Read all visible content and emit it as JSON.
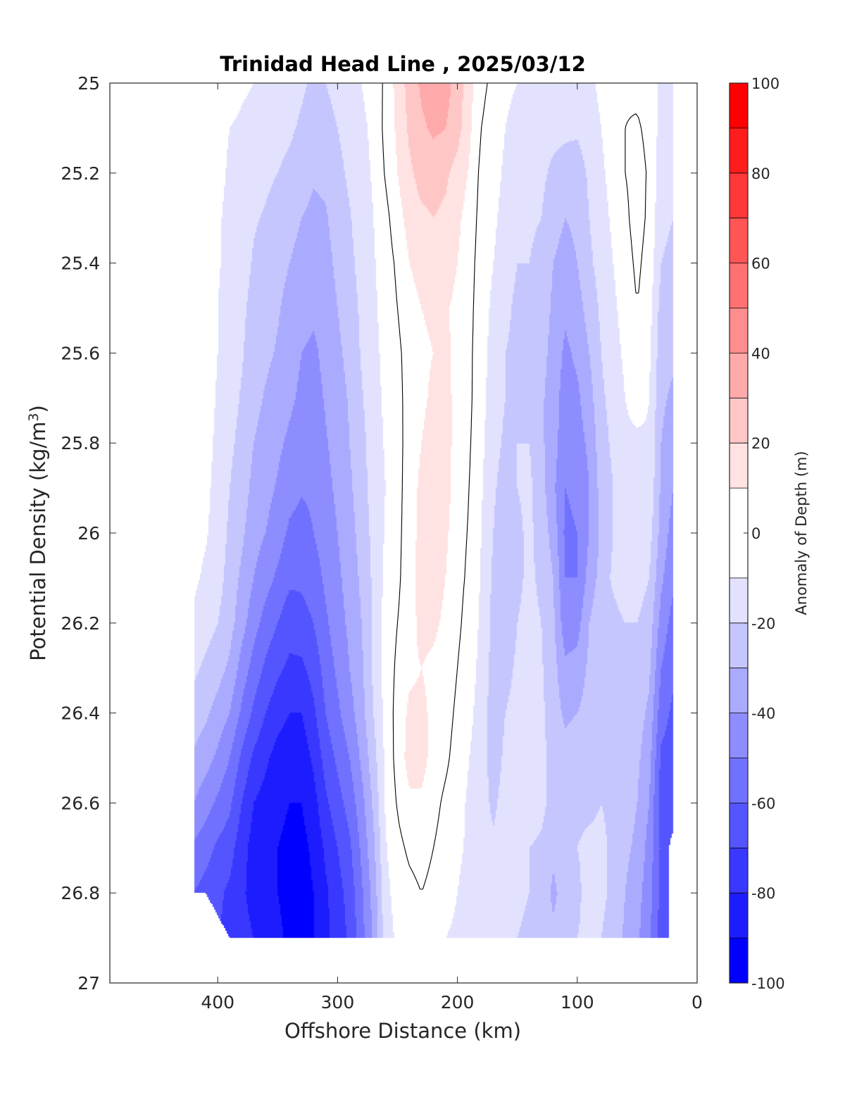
{
  "chart_data": {
    "type": "filled-contour",
    "title": "Trinidad Head Line , 2025/03/12",
    "xlabel": "Offshore Distance (km)",
    "ylabel": "Potential Density (kg/m",
    "ylabel_sup": "3",
    "ylabel_close": ")",
    "colorbar_label": "Anomaly of Depth (m)",
    "xlim": [
      490,
      0
    ],
    "x_reversed": true,
    "ylim": [
      25,
      27
    ],
    "y_reversed": true,
    "x_ticks": [
      400,
      300,
      200,
      100,
      0
    ],
    "y_ticks": [
      25,
      25.2,
      25.4,
      25.6,
      25.8,
      26,
      26.2,
      26.4,
      26.6,
      26.8,
      27
    ],
    "x_tick_labels": [
      "400",
      "300",
      "200",
      "100",
      "0"
    ],
    "y_tick_labels": [
      "25",
      "25.2",
      "25.4",
      "25.6",
      "25.8",
      "26",
      "26.2",
      "26.4",
      "26.6",
      "26.8",
      "27"
    ],
    "colorbar_ticks": [
      100,
      80,
      60,
      40,
      20,
      0,
      -20,
      -40,
      -60,
      -80,
      -100
    ],
    "colorbar_tick_labels": [
      "100",
      "80",
      "60",
      "40",
      "20",
      "0",
      "-20",
      "-40",
      "-60",
      "-80",
      "-100"
    ],
    "contour_levels": [
      -100,
      -90,
      -80,
      -70,
      -60,
      -50,
      -40,
      -30,
      -20,
      -10,
      10,
      20,
      30,
      40,
      50,
      60,
      70,
      80,
      90,
      100
    ],
    "colormap": [
      "#0000ff",
      "#1c1cff",
      "#3838ff",
      "#5555ff",
      "#7171ff",
      "#8d8dff",
      "#aaaaff",
      "#c6c6ff",
      "#e2e2ff",
      "#ffffff",
      "#ffe2e2",
      "#ffc6c6",
      "#ffaaaa",
      "#ff8d8d",
      "#ff7171",
      "#ff5555",
      "#ff3838",
      "#ff1c1c",
      "#ff0000"
    ],
    "zero_contour_color": "#000000",
    "data_extent": {
      "x": [
        20,
        420
      ],
      "y": [
        25,
        26.9
      ]
    },
    "bottom_mask": [
      [
        420,
        26.8
      ],
      [
        410,
        26.8
      ],
      [
        390,
        26.9
      ],
      [
        30,
        26.9
      ],
      [
        20,
        26.9
      ]
    ],
    "x": [
      20,
      30,
      40,
      50,
      60,
      70,
      80,
      90,
      100,
      110,
      120,
      130,
      140,
      150,
      160,
      170,
      180,
      190,
      200,
      210,
      220,
      230,
      240,
      250,
      260,
      270,
      280,
      290,
      300,
      310,
      320,
      330,
      340,
      350,
      360,
      370,
      380,
      390,
      400,
      410,
      420
    ],
    "y": [
      25.0,
      25.1,
      25.2,
      25.3,
      25.4,
      25.5,
      25.6,
      25.7,
      25.8,
      25.9,
      26.0,
      26.1,
      26.2,
      26.3,
      26.4,
      26.5,
      26.6,
      26.7,
      26.8,
      26.9
    ],
    "columns": [
      {
        "x": 420,
        "z": [
          null,
          0,
          0,
          -2,
          -3,
          -3,
          -3,
          -3,
          -4,
          -5,
          -6,
          -8,
          -12,
          -18,
          -24,
          -32,
          -40,
          -52,
          -60,
          null
        ]
      },
      {
        "x": 410,
        "z": [
          null,
          -4,
          -4,
          -5,
          -5,
          -6,
          -6,
          -6,
          -7,
          -8,
          -9,
          -12,
          -16,
          -22,
          -28,
          -36,
          -46,
          -56,
          -64,
          null
        ]
      },
      {
        "x": 400,
        "z": [
          -3,
          -8,
          -8,
          -9,
          -9,
          -10,
          -10,
          -11,
          -12,
          -13,
          -14,
          -16,
          -20,
          -26,
          -34,
          -42,
          -52,
          -62,
          -68,
          null
        ]
      },
      {
        "x": 390,
        "z": [
          -5,
          -10,
          -11,
          -12,
          -13,
          -14,
          -15,
          -16,
          -18,
          -20,
          -22,
          -24,
          -26,
          -32,
          -40,
          -50,
          -58,
          -66,
          -72,
          -72
        ]
      },
      {
        "x": 380,
        "z": [
          -8,
          -12,
          -13,
          -15,
          -16,
          -18,
          -19,
          -21,
          -23,
          -25,
          -28,
          -32,
          -36,
          -44,
          -52,
          -62,
          -70,
          -76,
          -78,
          -76
        ]
      },
      {
        "x": 370,
        "z": [
          -10,
          -14,
          -16,
          -19,
          -21,
          -23,
          -25,
          -27,
          -30,
          -33,
          -36,
          -40,
          -46,
          -54,
          -62,
          -72,
          -80,
          -84,
          -84,
          -80
        ]
      },
      {
        "x": 360,
        "z": [
          -10,
          -15,
          -18,
          -21,
          -24,
          -26,
          -28,
          -31,
          -34,
          -37,
          -40,
          -46,
          -54,
          -62,
          -70,
          -78,
          -84,
          -86,
          -86,
          -84
        ]
      },
      {
        "x": 350,
        "z": [
          -10,
          -16,
          -20,
          -24,
          -27,
          -29,
          -31,
          -34,
          -38,
          -41,
          -45,
          -52,
          -60,
          -68,
          -76,
          -84,
          -88,
          -90,
          -90,
          -88
        ]
      },
      {
        "x": 340,
        "z": [
          -14,
          -18,
          -23,
          -27,
          -30,
          -33,
          -36,
          -38,
          -42,
          -46,
          -52,
          -58,
          -66,
          -72,
          -80,
          -86,
          -90,
          -92,
          -93,
          -92
        ]
      },
      {
        "x": 330,
        "z": [
          -18,
          -22,
          -26,
          -30,
          -33,
          -36,
          -40,
          -42,
          -45,
          -49,
          -54,
          -58,
          -64,
          -72,
          -80,
          -86,
          -90,
          -93,
          -94,
          -96
        ]
      },
      {
        "x": 320,
        "z": [
          -22,
          -26,
          -29,
          -32,
          -35,
          -38,
          -42,
          -44,
          -46,
          -48,
          -50,
          -55,
          -60,
          -66,
          -72,
          -78,
          -84,
          -88,
          -90,
          -90
        ]
      },
      {
        "x": 310,
        "z": [
          -20,
          -26,
          -28,
          -31,
          -33,
          -35,
          -37,
          -39,
          -41,
          -43,
          -45,
          -48,
          -52,
          -56,
          -60,
          -66,
          -72,
          -78,
          -82,
          -82
        ]
      },
      {
        "x": 300,
        "z": [
          -15,
          -20,
          -23,
          -26,
          -28,
          -30,
          -32,
          -34,
          -36,
          -38,
          -40,
          -42,
          -44,
          -48,
          -52,
          -58,
          -64,
          -70,
          -74,
          -76
        ]
      },
      {
        "x": 290,
        "z": [
          -12,
          -16,
          -18,
          -21,
          -23,
          -25,
          -27,
          -29,
          -30,
          -32,
          -34,
          -36,
          -38,
          -40,
          -44,
          -50,
          -56,
          -62,
          -66,
          -68
        ]
      },
      {
        "x": 280,
        "z": [
          -10,
          -12,
          -13,
          -14,
          -16,
          -18,
          -19,
          -21,
          -23,
          -24,
          -26,
          -28,
          -30,
          -32,
          -34,
          -38,
          -44,
          -48,
          -52,
          -54
        ]
      },
      {
        "x": 270,
        "z": [
          -6,
          -8,
          -9,
          -10,
          -11,
          -12,
          -13,
          -14,
          -15,
          -16,
          -17,
          -18,
          -18,
          -18,
          -20,
          -24,
          -28,
          -32,
          -36,
          -38
        ]
      },
      {
        "x": 260,
        "z": [
          2,
          3,
          1,
          -3,
          -5,
          -6,
          -7,
          -8,
          -9,
          -10,
          -9,
          -8,
          -6,
          -6,
          -7,
          -8,
          -9,
          -11,
          -13,
          -15
        ]
      },
      {
        "x": 250,
        "z": [
          14,
          12,
          10,
          6,
          2,
          0,
          -2,
          -3,
          -4,
          -4,
          -3,
          -2,
          0,
          2,
          4,
          4,
          1,
          -3,
          -6,
          -8
        ]
      },
      {
        "x": 240,
        "z": [
          24,
          22,
          18,
          14,
          10,
          6,
          4,
          4,
          5,
          6,
          6,
          6,
          6,
          8,
          12,
          14,
          8,
          2,
          -3,
          -6
        ]
      },
      {
        "x": 230,
        "z": [
          32,
          28,
          24,
          18,
          14,
          10,
          8,
          8,
          10,
          12,
          13,
          14,
          13,
          10,
          12,
          14,
          8,
          4,
          0,
          -2
        ]
      },
      {
        "x": 220,
        "z": [
          36,
          32,
          24,
          20,
          16,
          12,
          10,
          12,
          14,
          16,
          16,
          15,
          12,
          8,
          8,
          6,
          3,
          0,
          -3,
          -6
        ]
      },
      {
        "x": 210,
        "z": [
          34,
          30,
          22,
          18,
          14,
          11,
          12,
          14,
          14,
          14,
          12,
          10,
          8,
          6,
          4,
          2,
          -2,
          -4,
          -6,
          -10
        ]
      },
      {
        "x": 200,
        "z": [
          26,
          24,
          16,
          12,
          10,
          8,
          7,
          6,
          6,
          5,
          4,
          3,
          2,
          0,
          -2,
          -4,
          -6,
          -8,
          -10,
          -12
        ]
      },
      {
        "x": 190,
        "z": [
          14,
          12,
          9,
          6,
          4,
          3,
          2,
          2,
          1,
          0,
          -1,
          -2,
          -4,
          -6,
          -8,
          -10,
          -12,
          -12,
          -14,
          -14
        ]
      },
      {
        "x": 180,
        "z": [
          2,
          0,
          -3,
          -4,
          -5,
          -6,
          -6,
          -7,
          -8,
          -9,
          -10,
          -11,
          -12,
          -13,
          -14,
          -15,
          -16,
          -17,
          -18,
          -18
        ]
      },
      {
        "x": 170,
        "z": [
          -2,
          -4,
          -6,
          -8,
          -10,
          -12,
          -14,
          -15,
          -16,
          -18,
          -20,
          -22,
          -23,
          -24,
          -26,
          -25,
          -22,
          -18,
          -20,
          -20
        ]
      },
      {
        "x": 160,
        "z": [
          -8,
          -10,
          -12,
          -14,
          -16,
          -18,
          -20,
          -20,
          -22,
          -26,
          -30,
          -28,
          -24,
          -22,
          -20,
          -18,
          -16,
          -16,
          -18,
          -18
        ]
      },
      {
        "x": 150,
        "z": [
          -10,
          -13,
          -16,
          -18,
          -20,
          -22,
          -22,
          -22,
          -20,
          -20,
          -22,
          -22,
          -20,
          -19,
          -18,
          -17,
          -16,
          -16,
          -18,
          -20
        ]
      },
      {
        "x": 140,
        "z": [
          -10,
          -14,
          -17,
          -19,
          -20,
          -22,
          -24,
          -22,
          -20,
          -18,
          -18,
          -18,
          -17,
          -16,
          -15,
          -14,
          -14,
          -20,
          -20,
          -22
        ]
      },
      {
        "x": 130,
        "z": [
          -12,
          -16,
          -18,
          -20,
          -22,
          -24,
          -26,
          -28,
          -28,
          -26,
          -24,
          -22,
          -20,
          -19,
          -18,
          -17,
          -17,
          -22,
          -24,
          -24
        ]
      },
      {
        "x": 120,
        "z": [
          -14,
          -17,
          -22,
          -26,
          -30,
          -32,
          -34,
          -36,
          -36,
          -38,
          -34,
          -30,
          -28,
          -26,
          -25,
          -24,
          -24,
          -28,
          -32,
          -28
        ]
      },
      {
        "x": 110,
        "z": [
          -14,
          -18,
          -24,
          -30,
          -34,
          -38,
          -42,
          -44,
          -46,
          -50,
          -52,
          -50,
          -46,
          -38,
          -32,
          -26,
          -22,
          -24,
          -26,
          -24
        ]
      },
      {
        "x": 100,
        "z": [
          -14,
          -18,
          -26,
          -28,
          -30,
          -34,
          -38,
          -42,
          -44,
          -48,
          -50,
          -50,
          -44,
          -36,
          -30,
          -24,
          -22,
          -20,
          -22,
          -20
        ]
      },
      {
        "x": 90,
        "z": [
          -12,
          -14,
          -18,
          -20,
          -22,
          -26,
          -30,
          -34,
          -38,
          -40,
          -40,
          -36,
          -30,
          -28,
          -26,
          -24,
          -22,
          -18,
          -16,
          -18
        ]
      },
      {
        "x": 80,
        "z": [
          -8,
          -10,
          -12,
          -14,
          -16,
          -18,
          -20,
          -22,
          -24,
          -26,
          -28,
          -26,
          -22,
          -22,
          -24,
          -22,
          -20,
          -18,
          -18,
          -20
        ]
      },
      {
        "x": 70,
        "z": [
          -4,
          -4,
          -6,
          -8,
          -10,
          -12,
          -14,
          -16,
          -18,
          -20,
          -20,
          -18,
          -24,
          -30,
          -24,
          -22,
          -22,
          -22,
          -22,
          -24
        ]
      },
      {
        "x": 60,
        "z": [
          -1,
          0,
          0,
          -2,
          -4,
          -6,
          -8,
          -10,
          -12,
          -14,
          -14,
          -12,
          -20,
          -24,
          -22,
          -24,
          -26,
          -28,
          -30,
          -32
        ]
      },
      {
        "x": 50,
        "z": [
          -2,
          1,
          3,
          4,
          2,
          0,
          -2,
          -6,
          -12,
          -14,
          -14,
          -16,
          -20,
          -24,
          -26,
          -28,
          -30,
          -32,
          -36,
          -38
        ]
      },
      {
        "x": 40,
        "z": [
          -4,
          -2,
          -1,
          -2,
          -4,
          -6,
          -8,
          -10,
          -11,
          -12,
          -16,
          -20,
          -24,
          -28,
          -32,
          -36,
          -40,
          -44,
          -46,
          -48
        ]
      },
      {
        "x": 30,
        "z": [
          -12,
          -14,
          -16,
          -18,
          -20,
          -24,
          -26,
          -28,
          -30,
          -32,
          -34,
          -38,
          -44,
          -50,
          -56,
          -62,
          -66,
          -62,
          -64,
          -64
        ]
      },
      {
        "x": 20,
        "z": [
          -14,
          -16,
          -18,
          -20,
          -22,
          -26,
          -28,
          -32,
          -36,
          -40,
          -44,
          -48,
          -54,
          -58,
          -62,
          -64,
          -68,
          null,
          null,
          null
        ]
      }
    ]
  }
}
